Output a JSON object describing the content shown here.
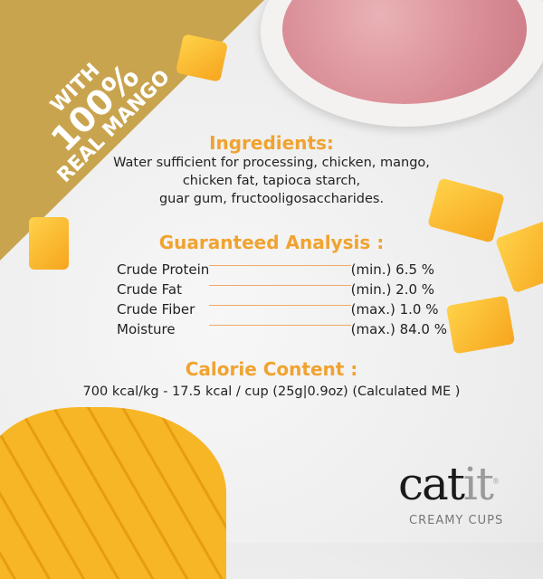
{
  "badge": {
    "line1": "WITH",
    "line2": "100%",
    "line3": "REAL MANGO"
  },
  "ingredients": {
    "heading": "Ingredients:",
    "lines": [
      "Water sufficient for processing, chicken, mango,",
      "chicken fat, tapioca starch,",
      "guar gum, fructooligosaccharides."
    ]
  },
  "analysis": {
    "heading": "Guaranteed Analysis :",
    "rows": [
      {
        "label": "Crude Protein",
        "value": "(min.) 6.5 %"
      },
      {
        "label": "Crude Fat",
        "value": "(min.) 2.0 %"
      },
      {
        "label": "Crude Fiber",
        "value": "(max.) 1.0 %"
      },
      {
        "label": "Moisture",
        "value": "(max.) 84.0 %"
      }
    ]
  },
  "calorie": {
    "heading": "Calorie Content :",
    "text": "700 kcal/kg - 17.5 kcal / cup (25g|0.9oz) (Calculated ME )"
  },
  "brand": {
    "logo_cat": "cat",
    "logo_it": "it",
    "registered": "®",
    "subtitle": "CREAMY CUPS"
  },
  "colors": {
    "gold": "#c9a44e",
    "heading_orange": "#f0a330"
  }
}
